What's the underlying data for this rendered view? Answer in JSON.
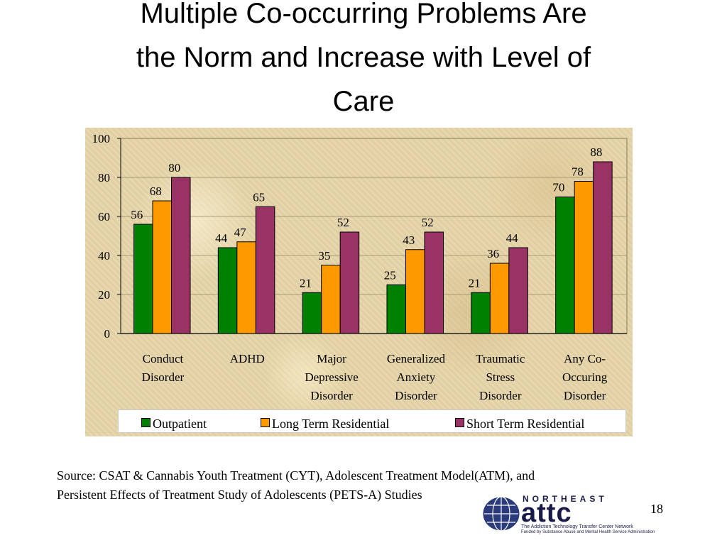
{
  "slide": {
    "title_lines": [
      "Multiple Co-occurring Problems Are",
      "the Norm and Increase with Level of",
      "Care"
    ],
    "source_text": "Source: CSAT & Cannabis Youth Treatment (CYT), Adolescent Treatment Model(ATM), and Persistent Effects of Treatment Study of Adolescents (PETS-A) Studies",
    "slide_number": "18"
  },
  "logo": {
    "name": "NORTHEAST",
    "word": "attc",
    "tagline": "The Addiction Technology Transfer Center Network",
    "funded_by": "Funded by Substance Abuse and Mental Health Service Administration"
  },
  "chart_data": {
    "type": "bar",
    "categories": [
      [
        "Conduct",
        "Disorder"
      ],
      [
        "ADHD"
      ],
      [
        "Major",
        "Depressive",
        "Disorder"
      ],
      [
        "Generalized",
        "Anxiety",
        "Disorder"
      ],
      [
        "Traumatic",
        "Stress",
        "Disorder"
      ],
      [
        "Any Co-",
        "Occuring",
        "Disorder"
      ]
    ],
    "series": [
      {
        "name": "Outpatient",
        "color": "#008000",
        "values": [
          56,
          44,
          21,
          25,
          21,
          70
        ]
      },
      {
        "name": "Long Term Residential",
        "color": "#ff9900",
        "values": [
          68,
          47,
          35,
          43,
          36,
          78
        ]
      },
      {
        "name": "Short Term Residential",
        "color": "#993366",
        "values": [
          80,
          65,
          52,
          52,
          44,
          88
        ]
      }
    ],
    "ylim": [
      0,
      100
    ],
    "yticks": [
      0,
      20,
      40,
      60,
      80,
      100
    ],
    "grid": true,
    "legend": "bottom",
    "title": "",
    "xlabel": "",
    "ylabel": ""
  }
}
